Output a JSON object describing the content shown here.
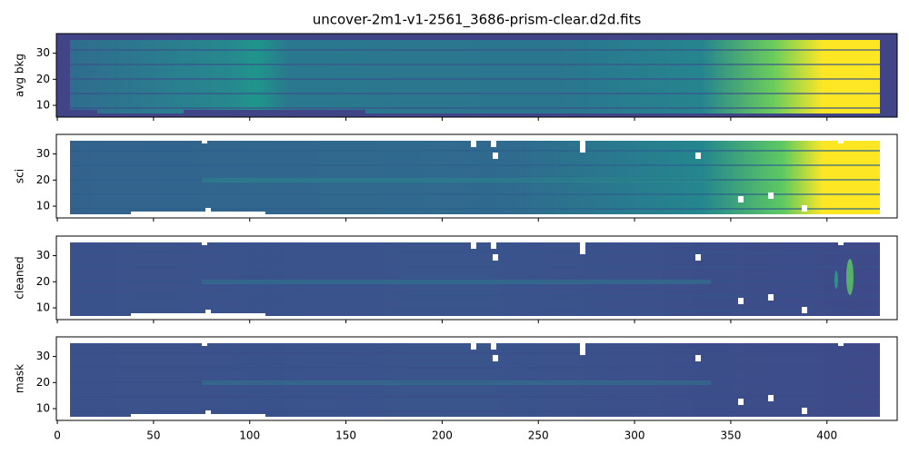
{
  "chart_data": [
    {
      "type": "image",
      "title": "uncover-2m1-v1-2561_3686-prism-clear.d2d.fits",
      "ylabel": "avg bkg",
      "xlim": [
        -0.5,
        436.5
      ],
      "xticks": [
        0,
        50,
        100,
        150,
        200,
        250,
        300,
        350,
        400
      ],
      "ylim": [
        5.5,
        37.5
      ],
      "yticks": [
        10,
        20,
        30
      ]
    },
    {
      "type": "image",
      "ylabel": "sci",
      "xlim": [
        -0.5,
        436.5
      ],
      "xticks": [
        0,
        50,
        100,
        150,
        200,
        250,
        300,
        350,
        400
      ],
      "ylim": [
        5.5,
        37.5
      ],
      "yticks": [
        10,
        20,
        30
      ]
    },
    {
      "type": "image",
      "ylabel": "cleaned",
      "xlim": [
        -0.5,
        436.5
      ],
      "xticks": [
        0,
        50,
        100,
        150,
        200,
        250,
        300,
        350,
        400
      ],
      "ylim": [
        5.5,
        37.5
      ],
      "yticks": [
        10,
        20,
        30
      ]
    },
    {
      "type": "image",
      "ylabel": "mask",
      "xlim": [
        -0.5,
        436.5
      ],
      "xticks": [
        0,
        50,
        100,
        150,
        200,
        250,
        300,
        350,
        400
      ],
      "ylim": [
        5.5,
        37.5
      ],
      "yticks": [
        10,
        20,
        30
      ]
    }
  ]
}
